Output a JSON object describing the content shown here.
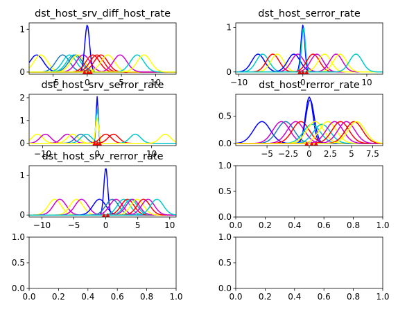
{
  "chart_data": [
    {
      "type": "line",
      "title": "dst_host_srv_diff_host_rate",
      "xlim": [
        -8.5,
        13
      ],
      "ylim": [
        -0.05,
        1.15
      ],
      "xticks": [
        {
          "v": -5,
          "label": "−5"
        },
        {
          "v": 0,
          "label": "0"
        },
        {
          "v": 5,
          "label": "5"
        },
        {
          "v": 10,
          "label": "10"
        }
      ],
      "yticks": [
        {
          "v": 0,
          "label": "0"
        },
        {
          "v": 1,
          "label": "1"
        }
      ],
      "series": [
        {
          "color": "#0000ff",
          "mu": -7.4,
          "sigma": 1.0,
          "amp": 0.4
        },
        {
          "color": "#ffff00",
          "mu": -6.8,
          "sigma": 1.0,
          "amp": 0.4
        },
        {
          "color": "#1f77b4",
          "mu": -3.6,
          "sigma": 1.0,
          "amp": 0.4
        },
        {
          "color": "#00c8c8",
          "mu": -2.6,
          "sigma": 1.0,
          "amp": 0.4
        },
        {
          "color": "#00c8c8",
          "mu": -2.0,
          "sigma": 1.0,
          "amp": 0.4
        },
        {
          "color": "#1f77b4",
          "mu": -1.7,
          "sigma": 1.0,
          "amp": 0.4
        },
        {
          "color": "#ffff00",
          "mu": -1.4,
          "sigma": 1.0,
          "amp": 0.4
        },
        {
          "color": "#cc00cc",
          "mu": -0.6,
          "sigma": 1.0,
          "amp": 0.4
        },
        {
          "color": "#0000ff",
          "mu": 0.0,
          "sigma": 0.35,
          "amp": 1.1
        },
        {
          "color": "#ff0000",
          "mu": 0.8,
          "sigma": 1.0,
          "amp": 0.4
        },
        {
          "color": "#ff0000",
          "mu": 1.4,
          "sigma": 1.0,
          "amp": 0.4
        },
        {
          "color": "#ff0000",
          "mu": 2.0,
          "sigma": 1.0,
          "amp": 0.4
        },
        {
          "color": "#ffff00",
          "mu": 3.0,
          "sigma": 1.0,
          "amp": 0.4
        },
        {
          "color": "#cc00cc",
          "mu": 4.8,
          "sigma": 1.0,
          "amp": 0.4
        },
        {
          "color": "#00c8c8",
          "mu": 7.3,
          "sigma": 1.0,
          "amp": 0.4
        },
        {
          "color": "#ffff00",
          "mu": 8.3,
          "sigma": 1.0,
          "amp": 0.4
        }
      ],
      "markers": [
        -0.4,
        0.1,
        0.5
      ]
    },
    {
      "type": "line",
      "title": "dst_host_serror_rate",
      "xlim": [
        -10.5,
        12.5
      ],
      "ylim": [
        -0.05,
        1.1
      ],
      "xticks": [
        {
          "v": -10,
          "label": "−10"
        },
        {
          "v": 0,
          "label": "0"
        },
        {
          "v": 10,
          "label": "10"
        }
      ],
      "yticks": [
        {
          "v": 0,
          "label": "0"
        },
        {
          "v": 1,
          "label": "1"
        }
      ],
      "series": [
        {
          "color": "#0000ff",
          "mu": -7.0,
          "sigma": 1.0,
          "amp": 0.4
        },
        {
          "color": "#00c8c8",
          "mu": -6.3,
          "sigma": 1.0,
          "amp": 0.4
        },
        {
          "color": "#ff0000",
          "mu": -4.7,
          "sigma": 1.0,
          "amp": 0.4
        },
        {
          "color": "#ffff00",
          "mu": -4.0,
          "sigma": 1.0,
          "amp": 0.4
        },
        {
          "color": "#0000ff",
          "mu": -1.4,
          "sigma": 1.0,
          "amp": 0.4
        },
        {
          "color": "#cc00cc",
          "mu": -0.8,
          "sigma": 1.0,
          "amp": 0.4
        },
        {
          "color": "#0000ff",
          "mu": 0.0,
          "sigma": 0.3,
          "amp": 1.05
        },
        {
          "color": "#00c8c8",
          "mu": 0.1,
          "sigma": 0.3,
          "amp": 1.0
        },
        {
          "color": "#ff0000",
          "mu": 1.6,
          "sigma": 1.0,
          "amp": 0.4
        },
        {
          "color": "#cc00cc",
          "mu": 2.2,
          "sigma": 1.0,
          "amp": 0.4
        },
        {
          "color": "#ffff00",
          "mu": 3.4,
          "sigma": 1.0,
          "amp": 0.4
        },
        {
          "color": "#cc00cc",
          "mu": 5.2,
          "sigma": 1.0,
          "amp": 0.4
        },
        {
          "color": "#ffff00",
          "mu": 5.8,
          "sigma": 1.0,
          "amp": 0.4
        },
        {
          "color": "#00c8c8",
          "mu": 8.3,
          "sigma": 1.0,
          "amp": 0.4
        }
      ],
      "markers": [
        -0.5,
        0.0,
        0.6
      ]
    },
    {
      "type": "line",
      "title": "dst_host_srv_serror_rate",
      "xlim": [
        -12.5,
        14.5
      ],
      "ylim": [
        -0.1,
        2.15
      ],
      "xticks": [
        {
          "v": -10,
          "label": "−10"
        },
        {
          "v": 0,
          "label": "0"
        },
        {
          "v": 10,
          "label": "10"
        }
      ],
      "yticks": [
        {
          "v": 0,
          "label": "0"
        },
        {
          "v": 1,
          "label": "1"
        },
        {
          "v": 2,
          "label": "2"
        }
      ],
      "series": [
        {
          "color": "#ffff00",
          "mu": -11.0,
          "sigma": 1.0,
          "amp": 0.4
        },
        {
          "color": "#cc00cc",
          "mu": -9.5,
          "sigma": 1.0,
          "amp": 0.4
        },
        {
          "color": "#cc00cc",
          "mu": -5.5,
          "sigma": 1.0,
          "amp": 0.4
        },
        {
          "color": "#ffff00",
          "mu": -4.5,
          "sigma": 1.0,
          "amp": 0.4
        },
        {
          "color": "#1f77b4",
          "mu": -3.0,
          "sigma": 1.0,
          "amp": 0.4
        },
        {
          "color": "#00c8c8",
          "mu": -2.0,
          "sigma": 1.0,
          "amp": 0.4
        },
        {
          "color": "#0000ff",
          "mu": 0.0,
          "sigma": 0.2,
          "amp": 2.05
        },
        {
          "color": "#00c8c8",
          "mu": 0.0,
          "sigma": 0.25,
          "amp": 1.5
        },
        {
          "color": "#ffff00",
          "mu": 0.0,
          "sigma": 0.3,
          "amp": 1.1
        },
        {
          "color": "#ff0000",
          "mu": 1.6,
          "sigma": 1.0,
          "amp": 0.4
        },
        {
          "color": "#ff0000",
          "mu": 3.0,
          "sigma": 1.0,
          "amp": 0.4
        },
        {
          "color": "#00c8c8",
          "mu": 7.0,
          "sigma": 1.0,
          "amp": 0.4
        },
        {
          "color": "#ffff00",
          "mu": 12.5,
          "sigma": 1.0,
          "amp": 0.4
        }
      ],
      "markers": [
        -0.5,
        0.0,
        0.5
      ]
    },
    {
      "type": "line",
      "title": "dst_host_rerror_rate",
      "xlim": [
        -8.7,
        8.7
      ],
      "ylim": [
        -0.04,
        0.9
      ],
      "xticks": [
        {
          "v": -5,
          "label": "−5"
        },
        {
          "v": -2.5,
          "label": "−2.5"
        },
        {
          "v": 0,
          "label": "0"
        },
        {
          "v": 2.5,
          "label": "2.5"
        },
        {
          "v": 5,
          "label": "5"
        },
        {
          "v": 7.5,
          "label": "7.5"
        }
      ],
      "yticks": [
        {
          "v": 0,
          "label": "0.0"
        },
        {
          "v": 0.5,
          "label": "0.5"
        }
      ],
      "series": [
        {
          "color": "#0000ff",
          "mu": -5.6,
          "sigma": 1.0,
          "amp": 0.4
        },
        {
          "color": "#cc00cc",
          "mu": -3.3,
          "sigma": 1.0,
          "amp": 0.4
        },
        {
          "color": "#1f77b4",
          "mu": -2.8,
          "sigma": 1.0,
          "amp": 0.4
        },
        {
          "color": "#cc00cc",
          "mu": -1.6,
          "sigma": 1.0,
          "amp": 0.4
        },
        {
          "color": "#ff0000",
          "mu": -1.0,
          "sigma": 1.0,
          "amp": 0.4
        },
        {
          "color": "#0000ff",
          "mu": 0.0,
          "sigma": 0.45,
          "amp": 0.85
        },
        {
          "color": "#0000ff",
          "mu": 0.1,
          "sigma": 0.5,
          "amp": 0.8
        },
        {
          "color": "#00c8c8",
          "mu": 0.3,
          "sigma": 1.0,
          "amp": 0.35
        },
        {
          "color": "#ffff00",
          "mu": 0.7,
          "sigma": 1.0,
          "amp": 0.4
        },
        {
          "color": "#00c8c8",
          "mu": 1.5,
          "sigma": 1.0,
          "amp": 0.35
        },
        {
          "color": "#ffff00",
          "mu": 2.2,
          "sigma": 1.0,
          "amp": 0.4
        },
        {
          "color": "#cc00cc",
          "mu": 3.0,
          "sigma": 1.0,
          "amp": 0.4
        },
        {
          "color": "#ff0000",
          "mu": 3.7,
          "sigma": 1.0,
          "amp": 0.4
        },
        {
          "color": "#cc00cc",
          "mu": 4.4,
          "sigma": 1.0,
          "amp": 0.4
        },
        {
          "color": "#ff0000",
          "mu": 5.3,
          "sigma": 1.0,
          "amp": 0.4
        },
        {
          "color": "#ffff00",
          "mu": 5.6,
          "sigma": 1.0,
          "amp": 0.4
        }
      ],
      "markers": [
        -0.3,
        0.3,
        0.8
      ]
    },
    {
      "type": "line",
      "title": "dst_host_srv_rerror_rate",
      "xlim": [
        -12,
        11
      ],
      "ylim": [
        -0.05,
        1.25
      ],
      "xticks": [
        {
          "v": -10,
          "label": "−10"
        },
        {
          "v": -5,
          "label": "−5"
        },
        {
          "v": 0,
          "label": "0"
        },
        {
          "v": 5,
          "label": "5"
        },
        {
          "v": 10,
          "label": "10"
        }
      ],
      "yticks": [
        {
          "v": 0,
          "label": "0"
        },
        {
          "v": 1,
          "label": "1"
        }
      ],
      "series": [
        {
          "color": "#ffff00",
          "mu": -8.0,
          "sigma": 1.0,
          "amp": 0.4
        },
        {
          "color": "#cc00cc",
          "mu": -7.2,
          "sigma": 1.0,
          "amp": 0.4
        },
        {
          "color": "#ffff00",
          "mu": -4.6,
          "sigma": 1.0,
          "amp": 0.4
        },
        {
          "color": "#cc00cc",
          "mu": -3.8,
          "sigma": 1.0,
          "amp": 0.4
        },
        {
          "color": "#0000ff",
          "mu": -1.0,
          "sigma": 1.0,
          "amp": 0.4
        },
        {
          "color": "#0000ff",
          "mu": 0.0,
          "sigma": 0.3,
          "amp": 1.2
        },
        {
          "color": "#1f77b4",
          "mu": 1.0,
          "sigma": 1.0,
          "amp": 0.4
        },
        {
          "color": "#cc00cc",
          "mu": 1.6,
          "sigma": 1.0,
          "amp": 0.4
        },
        {
          "color": "#00c8c8",
          "mu": 2.8,
          "sigma": 1.0,
          "amp": 0.4
        },
        {
          "color": "#ff0000",
          "mu": 3.4,
          "sigma": 1.0,
          "amp": 0.4
        },
        {
          "color": "#00c8c8",
          "mu": 3.9,
          "sigma": 1.0,
          "amp": 0.4
        },
        {
          "color": "#cc00cc",
          "mu": 4.2,
          "sigma": 1.0,
          "amp": 0.4
        },
        {
          "color": "#ffff00",
          "mu": 4.9,
          "sigma": 1.0,
          "amp": 0.4
        },
        {
          "color": "#ff0000",
          "mu": 5.9,
          "sigma": 1.0,
          "amp": 0.4
        },
        {
          "color": "#cc00cc",
          "mu": 6.6,
          "sigma": 1.0,
          "amp": 0.4
        },
        {
          "color": "#00c8c8",
          "mu": 8.0,
          "sigma": 1.0,
          "amp": 0.4
        }
      ],
      "markers": [
        -0.3,
        0.3
      ]
    },
    {
      "type": "line",
      "title": "",
      "xlim": [
        0,
        1
      ],
      "ylim": [
        0,
        1
      ],
      "xticks": [
        {
          "v": 0,
          "label": "0.0"
        },
        {
          "v": 0.2,
          "label": "0.2"
        },
        {
          "v": 0.4,
          "label": "0.4"
        },
        {
          "v": 0.6,
          "label": "0.6"
        },
        {
          "v": 0.8,
          "label": "0.8"
        },
        {
          "v": 1,
          "label": "1.0"
        }
      ],
      "yticks": [
        {
          "v": 0,
          "label": "0.0"
        },
        {
          "v": 0.5,
          "label": "0.5"
        },
        {
          "v": 1,
          "label": "1.0"
        }
      ],
      "series": [],
      "markers": []
    },
    {
      "type": "line",
      "title": "",
      "xlim": [
        0,
        1
      ],
      "ylim": [
        0,
        1
      ],
      "xticks": [
        {
          "v": 0,
          "label": "0.0"
        },
        {
          "v": 0.2,
          "label": "0.2"
        },
        {
          "v": 0.4,
          "label": "0.4"
        },
        {
          "v": 0.6,
          "label": "0.6"
        },
        {
          "v": 0.8,
          "label": "0.8"
        },
        {
          "v": 1,
          "label": "1.0"
        }
      ],
      "yticks": [
        {
          "v": 0,
          "label": "0.0"
        },
        {
          "v": 0.5,
          "label": "0.5"
        },
        {
          "v": 1,
          "label": "1.0"
        }
      ],
      "series": [],
      "markers": []
    },
    {
      "type": "line",
      "title": "",
      "xlim": [
        0,
        1
      ],
      "ylim": [
        0,
        1
      ],
      "xticks": [
        {
          "v": 0,
          "label": "0.0"
        },
        {
          "v": 0.2,
          "label": "0.2"
        },
        {
          "v": 0.4,
          "label": "0.4"
        },
        {
          "v": 0.6,
          "label": "0.6"
        },
        {
          "v": 0.8,
          "label": "0.8"
        },
        {
          "v": 1,
          "label": "1.0"
        }
      ],
      "yticks": [
        {
          "v": 0,
          "label": "0.0"
        },
        {
          "v": 0.5,
          "label": "0.5"
        },
        {
          "v": 1,
          "label": "1.0"
        }
      ],
      "series": [],
      "markers": []
    }
  ]
}
